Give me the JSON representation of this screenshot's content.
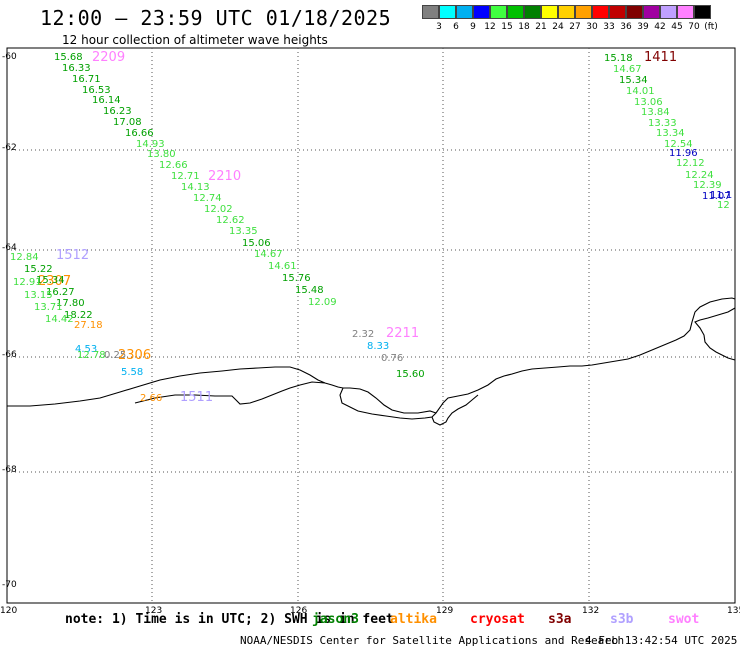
{
  "header": {
    "title": "12:00 – 23:59 UTC 01/18/2025",
    "subtitle": "12 hour collection of altimeter wave heights"
  },
  "legend": {
    "colors": [
      "#808080",
      "#00ffff",
      "#00b0f0",
      "#0000ff",
      "#40ff40",
      "#00c000",
      "#008000",
      "#ffff00",
      "#ffd000",
      "#ffa000",
      "#ff0000",
      "#c00000",
      "#800000",
      "#a000a0",
      "#c0a0ff",
      "#ff80ff",
      "#000000"
    ],
    "ticks": [
      "3",
      "6",
      "9",
      "12",
      "15",
      "18",
      "21",
      "24",
      "27",
      "30",
      "33",
      "36",
      "39",
      "42",
      "45",
      "70",
      "(ft)"
    ]
  },
  "axes": {
    "y_ticks": [
      "-60",
      "-62",
      "-64",
      "-66",
      "-68",
      "-70"
    ],
    "x_ticks": [
      "120",
      "123",
      "126",
      "129",
      "132",
      "135"
    ]
  },
  "footer": {
    "note": "note: 1) Time is in UTC; 2) SWH is in feet",
    "satellites": [
      {
        "name": "jason3",
        "color": "#008000"
      },
      {
        "name": "altika",
        "color": "#ff9000"
      },
      {
        "name": "cryosat",
        "color": "#ff0000"
      },
      {
        "name": "s3a",
        "color": "#800000"
      },
      {
        "name": "s3b",
        "color": "#b0a0ff"
      },
      {
        "name": "swot",
        "color": "#ff80ff"
      }
    ],
    "credit": "NOAA/NESDIS Center for Satellite Applications and Research",
    "stamp": "4 Feb 13:42:54 UTC 2025"
  },
  "passes": [
    {
      "text": "2209",
      "color": "#ff80ff"
    },
    {
      "text": "2210",
      "color": "#ff80ff"
    },
    {
      "text": "1512",
      "color": "#b0a0ff"
    },
    {
      "text": "2307",
      "color": "#ff9000"
    },
    {
      "text": "2306",
      "color": "#ff9000"
    },
    {
      "text": "1511",
      "color": "#b0a0ff"
    },
    {
      "text": "2211",
      "color": "#ff80ff"
    },
    {
      "text": "1411",
      "color": "#800000"
    }
  ],
  "labels": [
    {
      "text": "15.68",
      "color": "#00a000"
    },
    {
      "text": "16.33",
      "color": "#00a000"
    },
    {
      "text": "16.71",
      "color": "#00a000"
    },
    {
      "text": "16.53",
      "color": "#00a000"
    },
    {
      "text": "16.14",
      "color": "#00a000"
    },
    {
      "text": "16.23",
      "color": "#00a000"
    },
    {
      "text": "17.08",
      "color": "#00a000"
    },
    {
      "text": "16.66",
      "color": "#00a000"
    },
    {
      "text": "14.93",
      "color": "#40e040"
    },
    {
      "text": "13.80",
      "color": "#40e040"
    },
    {
      "text": "12.66",
      "color": "#40e040"
    },
    {
      "text": "12.71",
      "color": "#40e040"
    },
    {
      "text": "14.13",
      "color": "#40e040"
    },
    {
      "text": "12.74",
      "color": "#40e040"
    },
    {
      "text": "12.02",
      "color": "#40e040"
    },
    {
      "text": "12.62",
      "color": "#40e040"
    },
    {
      "text": "13.35",
      "color": "#40e040"
    },
    {
      "text": "15.06",
      "color": "#00a000"
    },
    {
      "text": "14.67",
      "color": "#40e040"
    },
    {
      "text": "14.61",
      "color": "#40e040"
    },
    {
      "text": "15.76",
      "color": "#00a000"
    },
    {
      "text": "15.48",
      "color": "#00a000"
    },
    {
      "text": "12.09",
      "color": "#40e040"
    },
    {
      "text": "12.84",
      "color": "#40e040"
    },
    {
      "text": "15.22",
      "color": "#00a000"
    },
    {
      "text": "15.34",
      "color": "#00a000"
    },
    {
      "text": "12.91",
      "color": "#40e040"
    },
    {
      "text": "16.27",
      "color": "#00a000"
    },
    {
      "text": "13.15",
      "color": "#40e040"
    },
    {
      "text": "17.80",
      "color": "#00a000"
    },
    {
      "text": "13.71",
      "color": "#40e040"
    },
    {
      "text": "18.22",
      "color": "#00a000"
    },
    {
      "text": "14.42",
      "color": "#40e040"
    },
    {
      "text": "27.18",
      "color": "#ff9000"
    },
    {
      "text": "4.53",
      "color": "#00b0f0"
    },
    {
      "text": "12.78",
      "color": "#40e040"
    },
    {
      "text": "0.25",
      "color": "#808080"
    },
    {
      "text": "5.58",
      "color": "#00b0f0"
    },
    {
      "text": "2.66",
      "color": "#ff9000"
    },
    {
      "text": "2.32",
      "color": "#808080"
    },
    {
      "text": "8.33",
      "color": "#00b0f0"
    },
    {
      "text": "0.76",
      "color": "#808080"
    },
    {
      "text": "15.60",
      "color": "#00a000"
    },
    {
      "text": "15.18",
      "color": "#00a000"
    },
    {
      "text": "14.67",
      "color": "#40e040"
    },
    {
      "text": "15.34",
      "color": "#00a000"
    },
    {
      "text": "14.01",
      "color": "#40e040"
    },
    {
      "text": "13.06",
      "color": "#40e040"
    },
    {
      "text": "13.84",
      "color": "#40e040"
    },
    {
      "text": "13.33",
      "color": "#40e040"
    },
    {
      "text": "13.34",
      "color": "#40e040"
    },
    {
      "text": "12.54",
      "color": "#40e040"
    },
    {
      "text": "11.96",
      "color": "#0000c0"
    },
    {
      "text": "12.12",
      "color": "#40e040"
    },
    {
      "text": "12.24",
      "color": "#40e040"
    },
    {
      "text": "12.39",
      "color": "#40e040"
    },
    {
      "text": "11.07",
      "color": "#0000c0"
    },
    {
      "text": "11.1",
      "color": "#0000c0"
    },
    {
      "text": "12",
      "color": "#40e040"
    }
  ]
}
